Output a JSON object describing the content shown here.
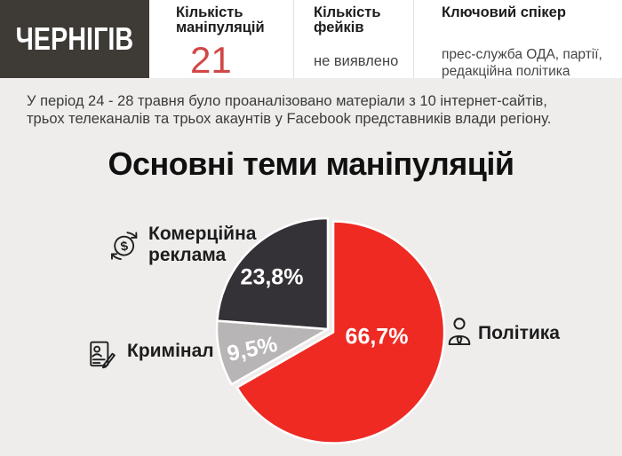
{
  "palette": {
    "brand_dark": "#3e3a36",
    "panel_bg": "#eeedec",
    "accent_red": "#d14747",
    "ink": "#1c1c1c",
    "muted_text": "#454545",
    "divider": "#e2e0df",
    "label_text_on_slice": "#ffffff"
  },
  "header": {
    "region": "ЧЕРНІГІВ",
    "stats": [
      {
        "label": "Кількість маніпуляцій",
        "value": "21"
      },
      {
        "label": "Кількість фейків",
        "value": "не виявлено"
      },
      {
        "label": "Ключовий спікер",
        "value": "прес-служба ОДА, партії, редакційна політика"
      }
    ]
  },
  "intro": {
    "line1": "У період 24 - 28 травня було проаналізовано матеріали з 10 інтернет-сайтів,",
    "line2": "трьох телеканалів та трьох акаунтів у Facebook представників влади регіону."
  },
  "section_title": "Основні теми маніпуляцій",
  "chart_data": {
    "type": "pie",
    "title": "Основні теми маніпуляцій",
    "start_angle_deg": 0,
    "direction": "clockwise",
    "legend_position": "sides",
    "slices": [
      {
        "label": "Політика",
        "value": 66.7,
        "display": "66,7%",
        "color": "#ee2a23",
        "icon": "politician",
        "exploded": true
      },
      {
        "label": "Кримінал",
        "value": 9.5,
        "display": "9,5%",
        "color": "#b7b5b5",
        "icon": "criminal-record",
        "exploded": false
      },
      {
        "label": "Комерційна реклама",
        "value": 23.8,
        "display": "23,8%",
        "color": "#343236",
        "icon": "money-circulation",
        "exploded": false
      }
    ]
  }
}
